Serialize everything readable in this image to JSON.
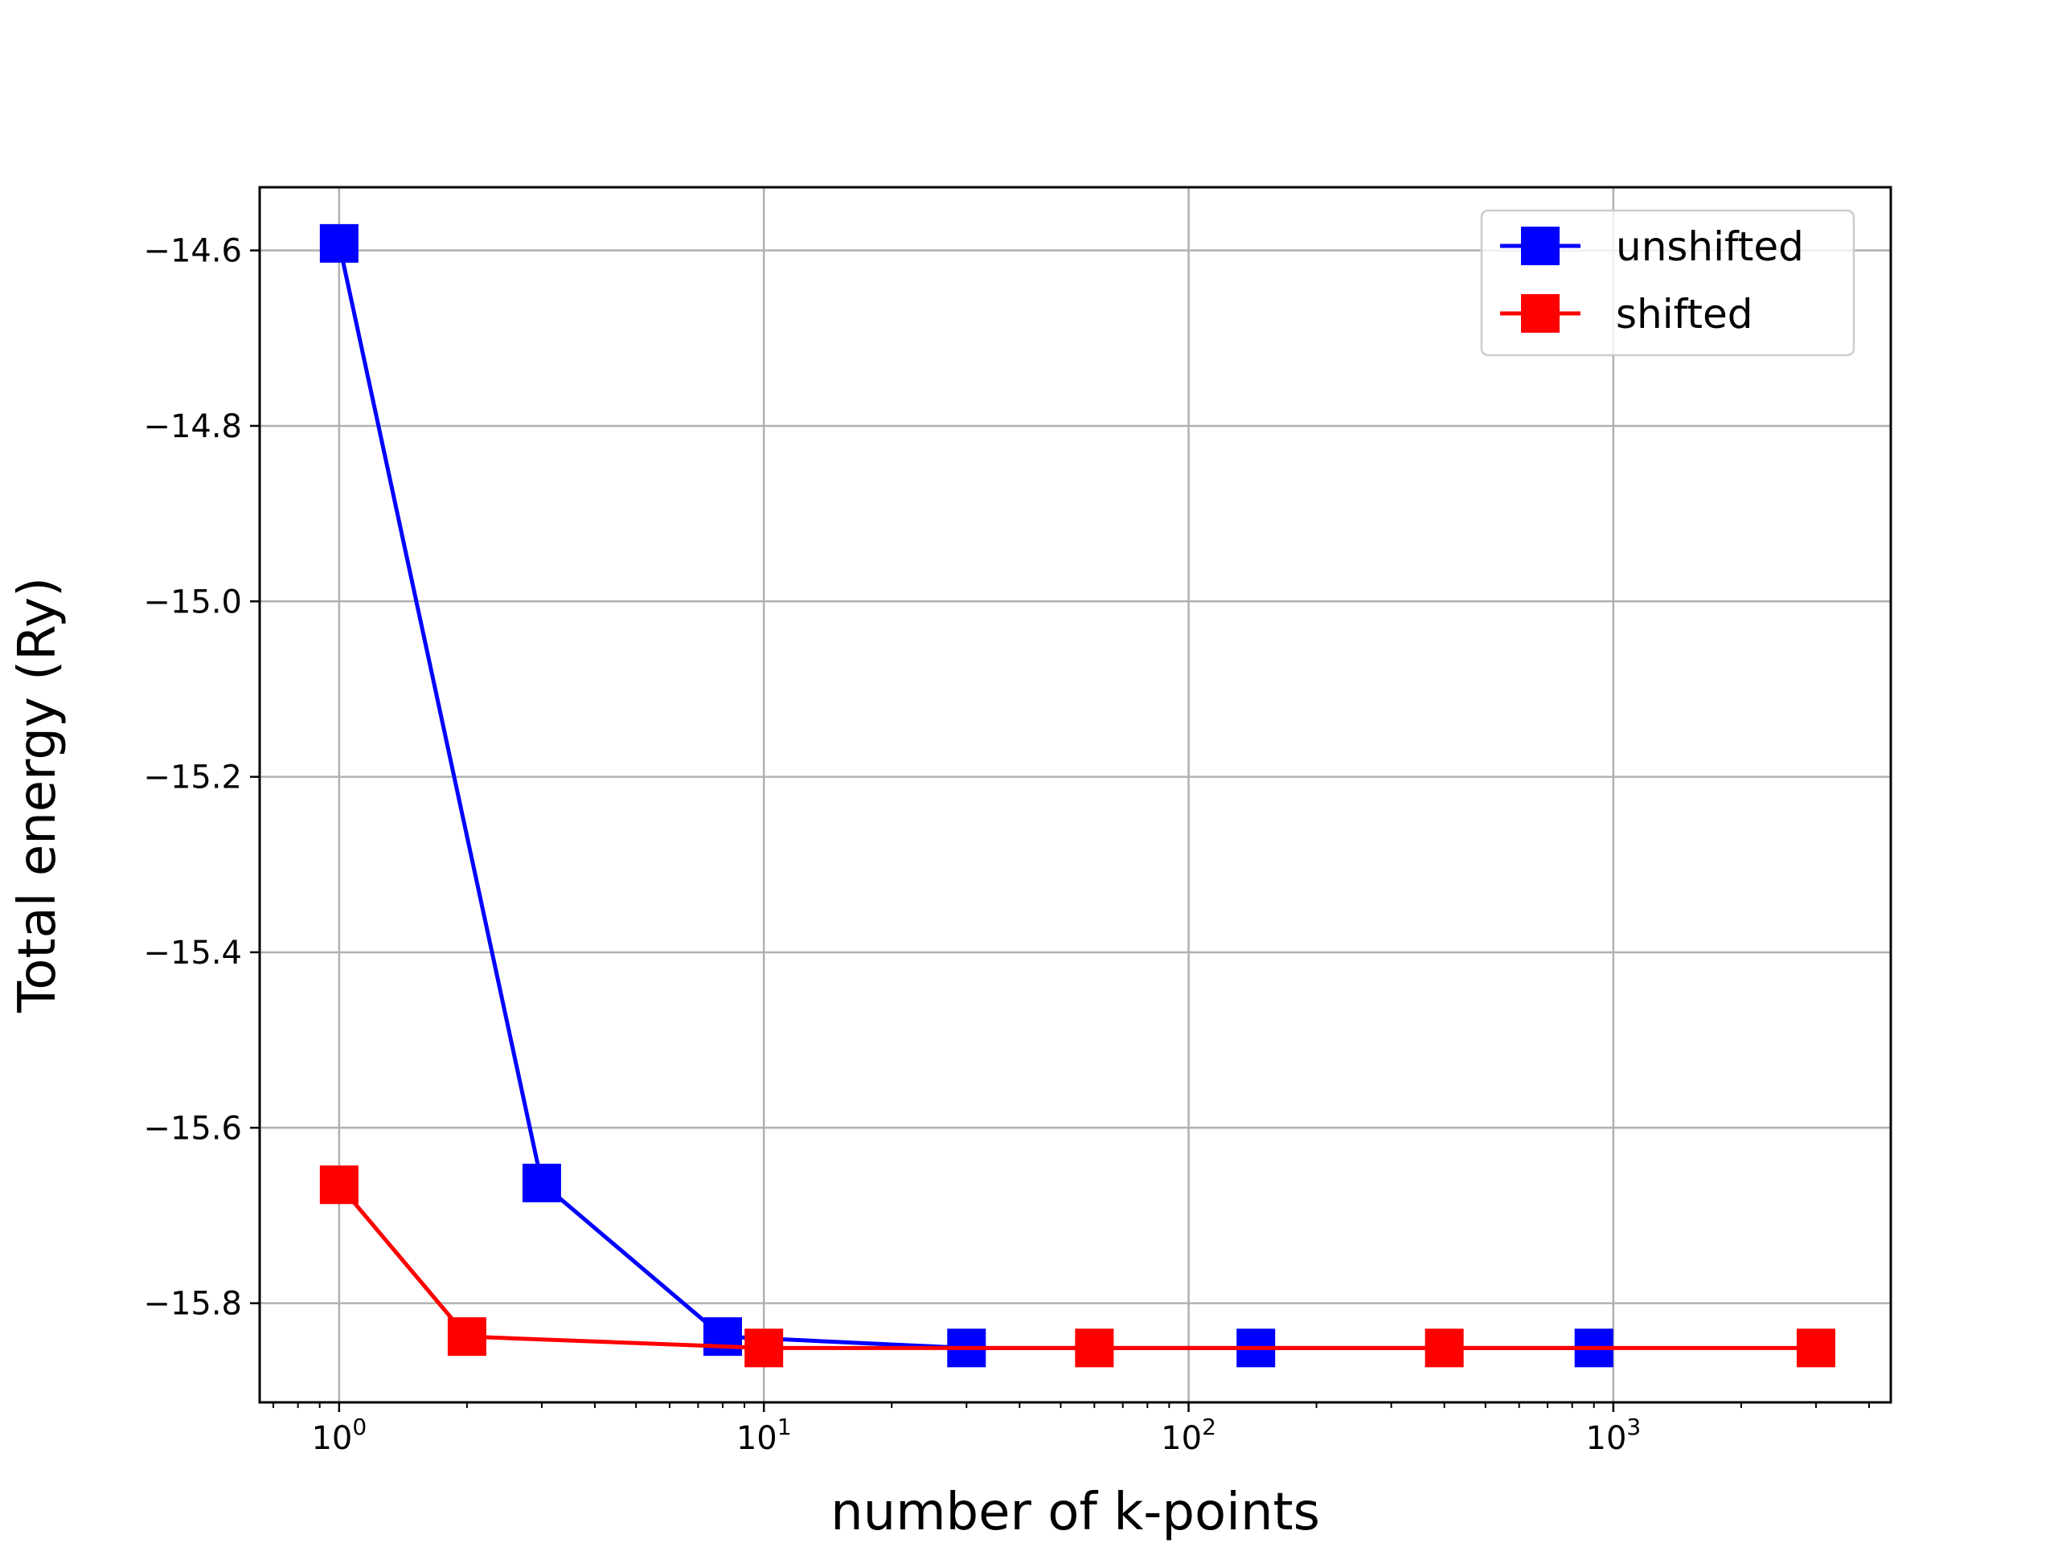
{
  "chart_data": {
    "type": "line",
    "title": "",
    "xlabel": "number of k-points",
    "ylabel": "Total energy (Ry)",
    "xscale": "log",
    "xlim": [
      0.65,
      4500
    ],
    "ylim": [
      -15.913,
      -14.528
    ],
    "grid": true,
    "legend_position": "top-right",
    "x_ticks": [
      {
        "value": 1,
        "base": "10",
        "exp": "0"
      },
      {
        "value": 10,
        "base": "10",
        "exp": "1"
      },
      {
        "value": 100,
        "base": "10",
        "exp": "2"
      },
      {
        "value": 1000,
        "base": "10",
        "exp": "3"
      }
    ],
    "y_ticks": [
      {
        "value": -14.6,
        "label": "−14.6"
      },
      {
        "value": -14.8,
        "label": "−14.8"
      },
      {
        "value": -15.0,
        "label": "−15.0"
      },
      {
        "value": -15.2,
        "label": "−15.2"
      },
      {
        "value": -15.4,
        "label": "−15.4"
      },
      {
        "value": -15.6,
        "label": "−15.6"
      },
      {
        "value": -15.8,
        "label": "−15.8"
      }
    ],
    "series": [
      {
        "name": "unshifted",
        "color": "#0000ff",
        "marker": "square",
        "x": [
          1,
          3,
          8,
          30,
          144,
          900
        ],
        "y": [
          -14.592,
          -15.663,
          -15.838,
          -15.851,
          -15.851,
          -15.851
        ]
      },
      {
        "name": "shifted",
        "color": "#ff0000",
        "marker": "square",
        "x": [
          1,
          2,
          10,
          60,
          400,
          3000
        ],
        "y": [
          -15.665,
          -15.838,
          -15.851,
          -15.851,
          -15.851,
          -15.851
        ]
      }
    ]
  }
}
